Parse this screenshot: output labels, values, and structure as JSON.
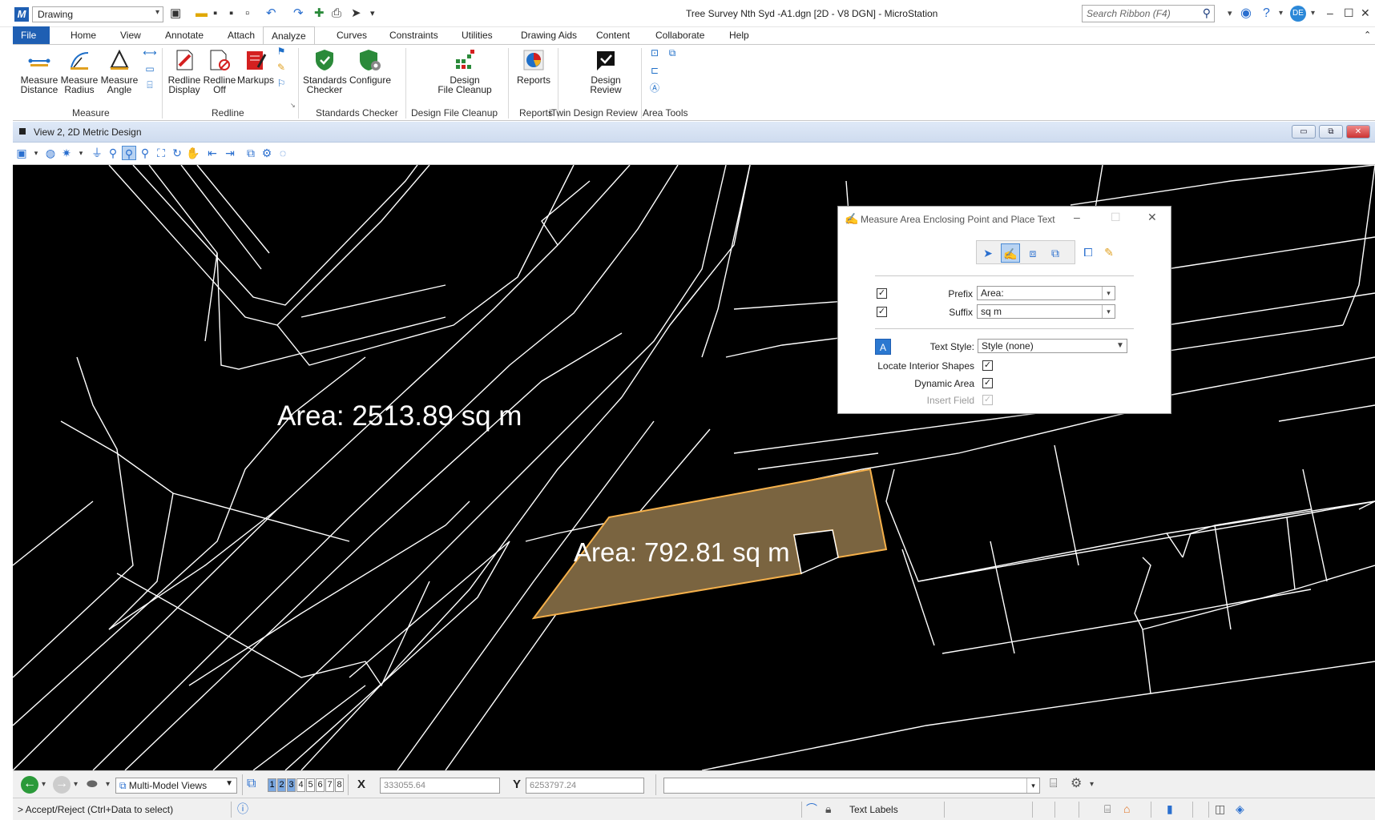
{
  "titlebar": {
    "workspace": "Drawing",
    "window_title": "Tree Survey Nth Syd -A1.dgn [2D - V8 DGN] - MicroStation",
    "search_placeholder": "Search Ribbon (F4)",
    "user_initials": "DE"
  },
  "tabs": [
    "File",
    "Home",
    "View",
    "Annotate",
    "Attach",
    "Analyze",
    "Curves",
    "Constraints",
    "Utilities",
    "Drawing Aids",
    "Content",
    "Collaborate",
    "Help"
  ],
  "active_tab": "Analyze",
  "ribbon": {
    "measure": {
      "distance": "Measure\nDistance",
      "radius": "Measure\nRadius",
      "angle": "Measure\nAngle",
      "label": "Measure"
    },
    "redline": {
      "display": "Redline\nDisplay",
      "off": "Redline\nOff",
      "markups": "Markups",
      "label": "Redline"
    },
    "standards": {
      "checker": "Standards\nChecker",
      "configure": "Configure",
      "label": "Standards Checker"
    },
    "cleanup": {
      "button": "Design\nFile Cleanup",
      "label": "Design File Cleanup"
    },
    "reports": {
      "button": "Reports",
      "label": "Reports"
    },
    "itwin": {
      "button": "Design\nReview",
      "label": "iTwin Design Review"
    },
    "area": {
      "label": "Area Tools"
    }
  },
  "view": {
    "title": "View 2, 2D Metric Design"
  },
  "canvas": {
    "area_large": "Area: 2513.89 sq m",
    "area_small": "Area: 792.81 sq m",
    "highlight_fill": "#7a6440",
    "highlight_stroke": "#f5b04a"
  },
  "dialog": {
    "title": "Measure Area Enclosing Point and Place Text",
    "prefix_label": "Prefix",
    "prefix_value": "Area:",
    "suffix_label": "Suffix",
    "suffix_value": "sq m",
    "text_style_label": "Text Style:",
    "text_style_value": "Style (none)",
    "locate_interior_label": "Locate Interior Shapes",
    "dynamic_area_label": "Dynamic Area",
    "insert_field_label": "Insert Field"
  },
  "statusbar": {
    "model_views": "Multi-Model Views",
    "view_numbers": [
      "1",
      "2",
      "3",
      "4",
      "5",
      "6",
      "7",
      "8"
    ],
    "x_label": "X",
    "x_value": "333055.64",
    "y_label": "Y",
    "y_value": "6253797.24",
    "prompt": "> Accept/Reject (Ctrl+Data to select)",
    "level": "Text Labels"
  }
}
